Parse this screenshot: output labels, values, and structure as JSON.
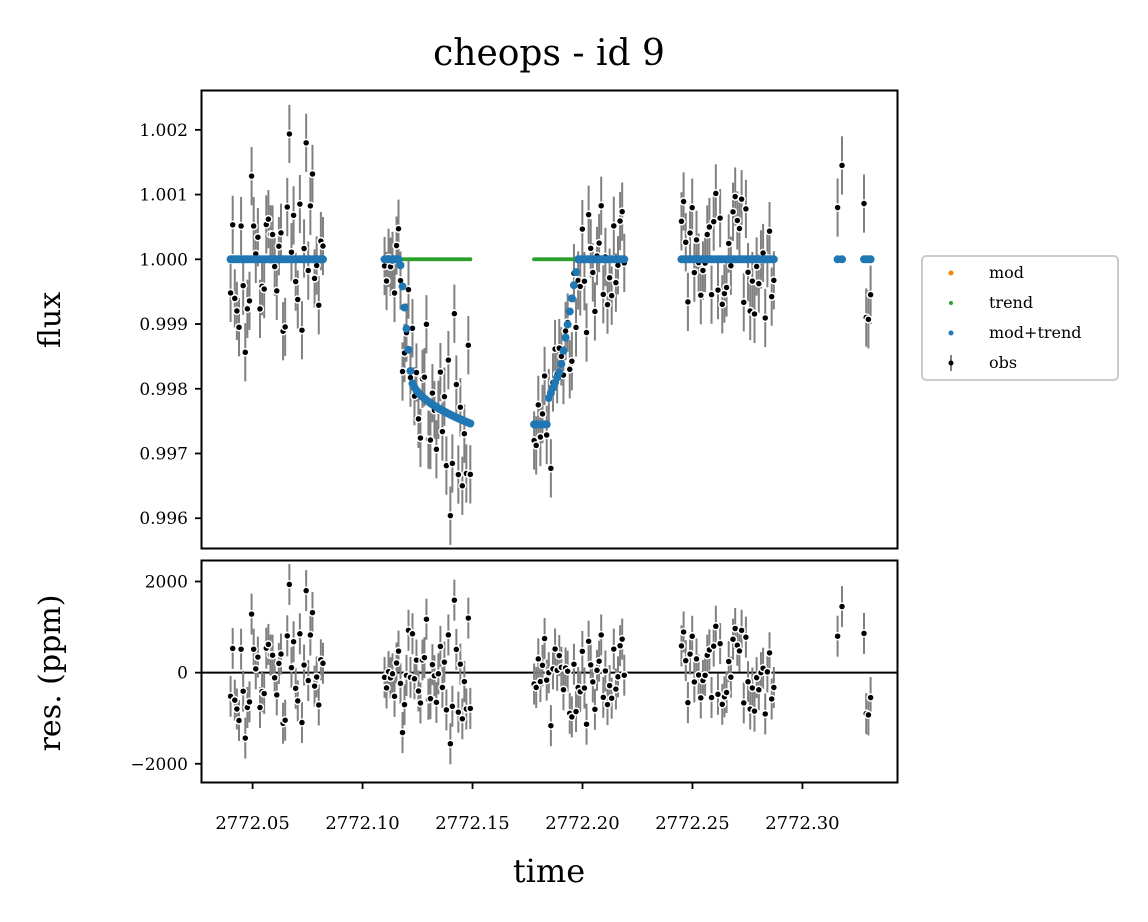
{
  "title": "cheops - id 9",
  "colors": {
    "mod": "#ff7f0e",
    "trend": "#2ca02c",
    "mod_trend": "#1f77b4",
    "obs_point": "#000000",
    "obs_err": "#808080"
  },
  "chart_data": [
    {
      "type": "scatter",
      "panel": "top",
      "title": "cheops - id 9",
      "xlabel": "",
      "ylabel": "flux",
      "xlim": [
        2772.027,
        2772.343
      ],
      "ylim": [
        0.99554,
        1.0026
      ],
      "yticks": [
        0.996,
        0.997,
        0.998,
        0.999,
        1.0,
        1.001,
        1.002
      ],
      "ytick_labels": [
        "0.996",
        "0.997",
        "0.998",
        "0.999",
        "1.000",
        "1.001",
        "1.002"
      ],
      "legend": {
        "placement": "right, outside axes",
        "entries": [
          {
            "label": "mod",
            "color": "#ff7f0e"
          },
          {
            "label": "trend",
            "color": "#2ca02c"
          },
          {
            "label": "mod+trend",
            "color": "#1f77b4"
          },
          {
            "label": "obs",
            "color": "#000000"
          }
        ]
      },
      "visits": [
        {
          "t0": 2772.04,
          "t1": 2772.082,
          "n": 45
        },
        {
          "t0": 2772.11,
          "t1": 2772.149,
          "n": 44
        },
        {
          "t0": 2772.178,
          "t1": 2772.219,
          "n": 44
        },
        {
          "t0": 2772.245,
          "t1": 2772.287,
          "n": 44
        },
        {
          "t0": 2772.316,
          "t1": 2772.318,
          "n": 2
        },
        {
          "t0": 2772.328,
          "t1": 2772.331,
          "n": 4
        }
      ],
      "trend_level": 1.0,
      "error_bar": 0.00045,
      "scatter_sd": 0.00068,
      "transit": {
        "ingress_start": 2772.117,
        "ingress_end": 2772.122,
        "egress_start": 2772.184,
        "egress_end": 2772.198,
        "depth_at_ingress_end": 0.9982,
        "depth_min": 0.99745,
        "depth_at_egress_start": 0.9978
      },
      "series": [
        {
          "name": "mod",
          "description": "transit model"
        },
        {
          "name": "trend",
          "description": "baseline trend, ~1.000"
        },
        {
          "name": "mod+trend",
          "description": "full model"
        },
        {
          "name": "obs",
          "description": "observed flux with error bars"
        }
      ]
    },
    {
      "type": "scatter",
      "panel": "bottom",
      "xlabel": "time",
      "ylabel": "res. (ppm)",
      "xlim": [
        2772.027,
        2772.343
      ],
      "ylim": [
        -2400,
        2450
      ],
      "xticks": [
        2772.05,
        2772.1,
        2772.15,
        2772.2,
        2772.25,
        2772.3
      ],
      "xtick_labels": [
        "2772.05",
        "2772.10",
        "2772.15",
        "2772.20",
        "2772.25",
        "2772.30"
      ],
      "yticks": [
        -2000,
        0,
        2000
      ],
      "ytick_labels": [
        "−2000",
        "0",
        "2000"
      ],
      "zero_line": 0,
      "error_bar_ppm": 450,
      "scatter_sd_ppm": 680
    }
  ]
}
